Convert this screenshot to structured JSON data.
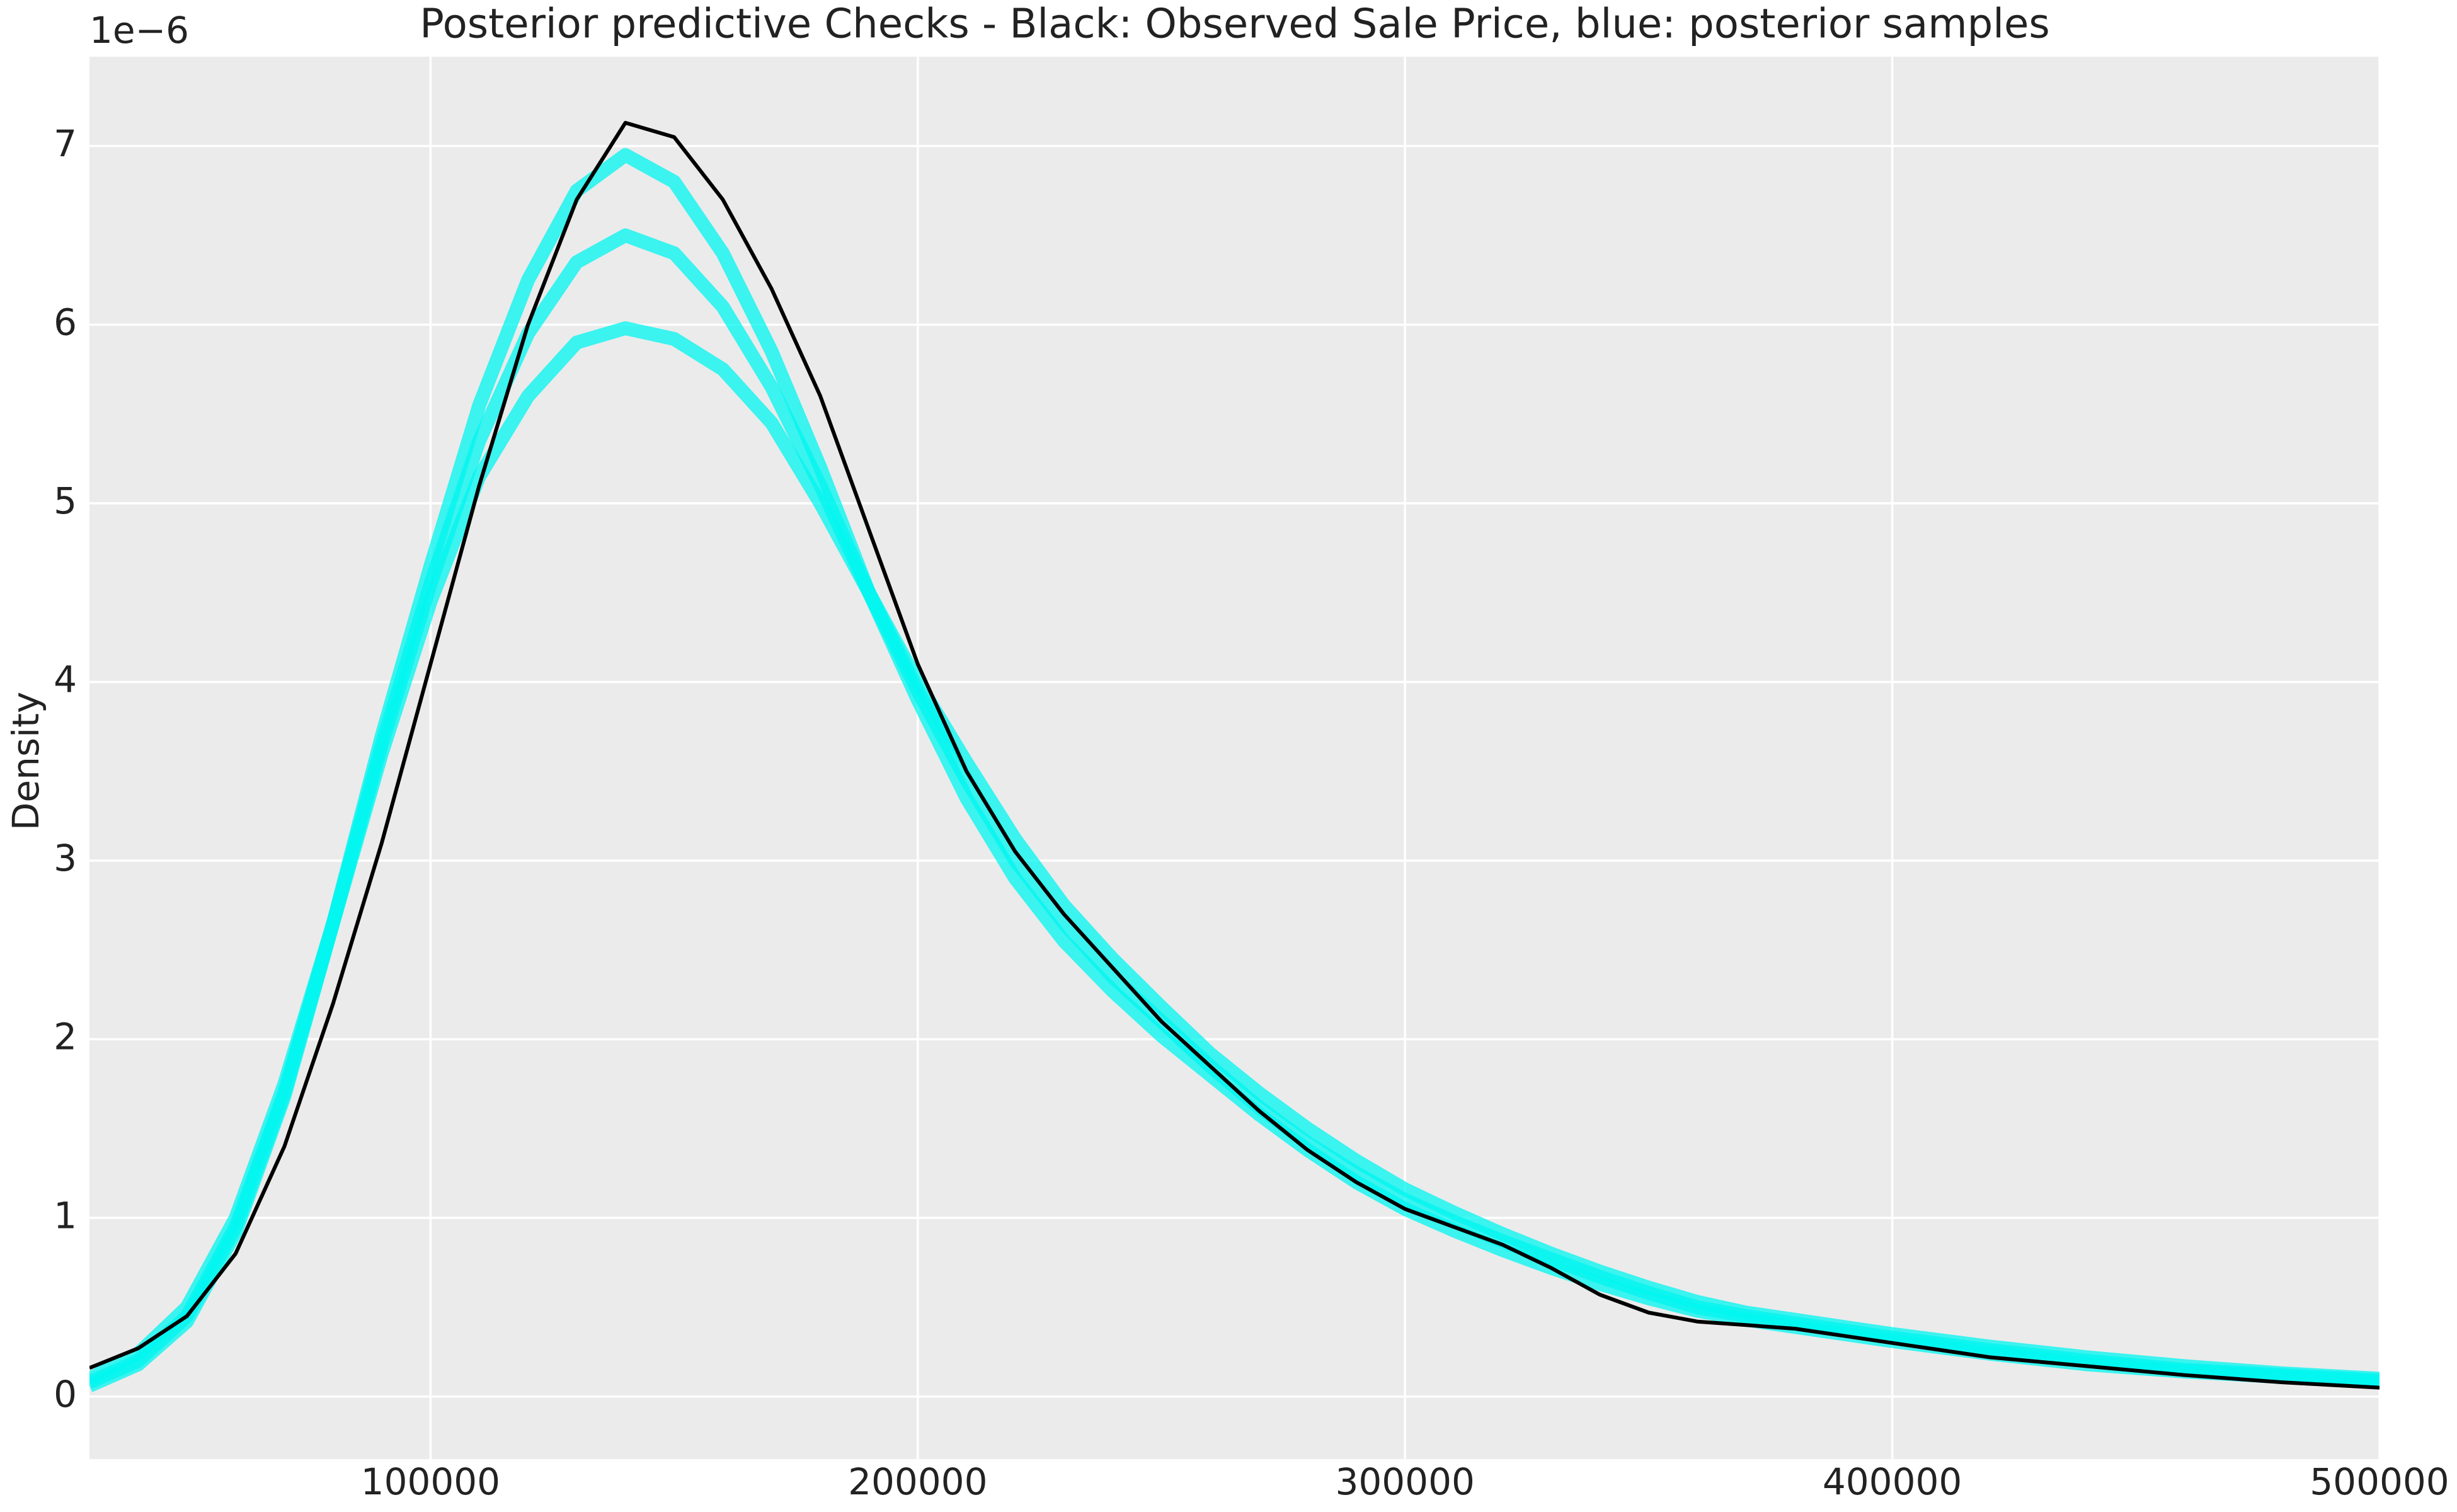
{
  "chart_data": {
    "type": "line",
    "title": "Posterior predictive Checks - Black: Observed Sale Price, blue: posterior samples",
    "y_label": "Density",
    "y_offset_label": "1e−6",
    "x": [
      30000,
      40000,
      50000,
      60000,
      70000,
      80000,
      90000,
      100000,
      110000,
      120000,
      130000,
      140000,
      150000,
      160000,
      170000,
      180000,
      190000,
      200000,
      210000,
      220000,
      230000,
      240000,
      250000,
      260000,
      270000,
      280000,
      290000,
      300000,
      310000,
      320000,
      330000,
      340000,
      350000,
      360000,
      370000,
      380000,
      390000,
      400000,
      420000,
      440000,
      460000,
      480000,
      500000
    ],
    "series": [
      {
        "color": "#00f5f0",
        "values": [
          0.1,
          0.24,
          0.5,
          1.0,
          1.75,
          2.65,
          3.6,
          4.45,
          5.15,
          5.6,
          5.9,
          5.98,
          5.92,
          5.75,
          5.45,
          5.0,
          4.5,
          4.0,
          3.55,
          3.12,
          2.75,
          2.45,
          2.18,
          1.92,
          1.7,
          1.5,
          1.32,
          1.16,
          1.03,
          0.91,
          0.8,
          0.7,
          0.61,
          0.53,
          0.47,
          0.43,
          0.39,
          0.35,
          0.28,
          0.22,
          0.17,
          0.13,
          0.1
        ]
      },
      {
        "color": "#00f5f0",
        "values": [
          0.08,
          0.2,
          0.45,
          0.95,
          1.7,
          2.65,
          3.65,
          4.55,
          5.35,
          5.95,
          6.35,
          6.5,
          6.4,
          6.1,
          5.65,
          5.1,
          4.5,
          3.95,
          3.45,
          3.0,
          2.65,
          2.35,
          2.1,
          1.85,
          1.62,
          1.42,
          1.25,
          1.1,
          0.98,
          0.87,
          0.77,
          0.67,
          0.58,
          0.5,
          0.45,
          0.41,
          0.37,
          0.33,
          0.26,
          0.2,
          0.15,
          0.12,
          0.09
        ]
      },
      {
        "color": "#00f5f0",
        "values": [
          0.06,
          0.18,
          0.42,
          0.92,
          1.68,
          2.65,
          3.7,
          4.65,
          5.55,
          6.25,
          6.75,
          6.95,
          6.8,
          6.4,
          5.85,
          5.2,
          4.5,
          3.9,
          3.35,
          2.9,
          2.55,
          2.27,
          2.02,
          1.8,
          1.58,
          1.38,
          1.2,
          1.05,
          0.93,
          0.82,
          0.72,
          0.63,
          0.55,
          0.48,
          0.43,
          0.39,
          0.35,
          0.31,
          0.24,
          0.18,
          0.14,
          0.11,
          0.08
        ]
      },
      {
        "color": "#000000",
        "values": [
          0.16,
          0.27,
          0.45,
          0.8,
          1.4,
          2.2,
          3.1,
          4.1,
          5.1,
          6.0,
          6.7,
          7.13,
          7.05,
          6.7,
          6.2,
          5.6,
          4.85,
          4.1,
          3.5,
          3.05,
          2.7,
          2.4,
          2.1,
          1.85,
          1.6,
          1.38,
          1.2,
          1.05,
          0.95,
          0.85,
          0.72,
          0.57,
          0.47,
          0.42,
          0.4,
          0.38,
          0.34,
          0.3,
          0.22,
          0.17,
          0.12,
          0.08,
          0.05
        ]
      }
    ],
    "xlim": [
      30000,
      500000
    ],
    "xticks": [
      100000,
      200000,
      300000,
      400000,
      500000
    ],
    "ylim": [
      -0.35,
      7.5
    ],
    "yticks": [
      0,
      1,
      2,
      3,
      4,
      5,
      6,
      7
    ],
    "grid": true
  }
}
